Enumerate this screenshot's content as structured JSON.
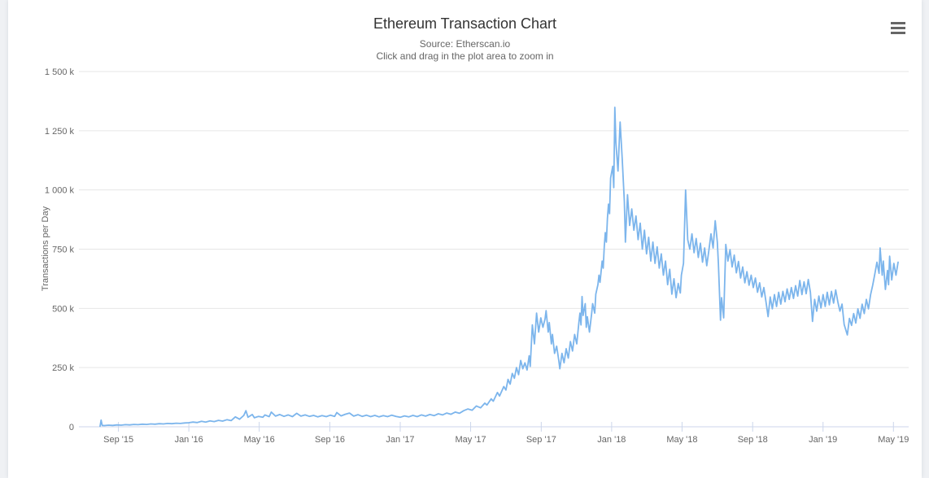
{
  "page": {
    "background": "#eff1f4",
    "card_background": "#ffffff"
  },
  "header": {
    "title": "Ethereum Transaction Chart",
    "subtitle": "Source: Etherscan.io",
    "hint": "Click and drag in the plot area to zoom in"
  },
  "toolbar": {
    "context_menu_icon": "hamburger-icon"
  },
  "chart_data": {
    "type": "line",
    "title": "Ethereum Transaction Chart",
    "subtitle": "Source: Etherscan.io",
    "annotation": "Click and drag in the plot area to zoom in",
    "ylabel": "Transactions per Day",
    "y_unit": "thousands",
    "legend": "none",
    "grid": "horizontal-only",
    "xlim": [
      2015.48,
      2019.405
    ],
    "ylim": [
      0,
      1500
    ],
    "colors": {
      "line": "#7cb5ec",
      "grid": "#e6e6e6",
      "axis_line": "#ccd6eb",
      "labels": "#666666",
      "title": "#333333"
    },
    "x_ticks": [
      {
        "t": 2015.667,
        "label": "Sep '15"
      },
      {
        "t": 2016.0,
        "label": "Jan '16"
      },
      {
        "t": 2016.333,
        "label": "May '16"
      },
      {
        "t": 2016.667,
        "label": "Sep '16"
      },
      {
        "t": 2017.0,
        "label": "Jan '17"
      },
      {
        "t": 2017.333,
        "label": "May '17"
      },
      {
        "t": 2017.667,
        "label": "Sep '17"
      },
      {
        "t": 2018.0,
        "label": "Jan '18"
      },
      {
        "t": 2018.333,
        "label": "May '18"
      },
      {
        "t": 2018.667,
        "label": "Sep '18"
      },
      {
        "t": 2019.0,
        "label": "Jan '19"
      },
      {
        "t": 2019.333,
        "label": "May '19"
      }
    ],
    "y_ticks": [
      {
        "v": 0,
        "label": "0"
      },
      {
        "v": 250,
        "label": "250 k"
      },
      {
        "v": 500,
        "label": "500 k"
      },
      {
        "v": 750,
        "label": "750 k"
      },
      {
        "v": 1000,
        "label": "1 000 k"
      },
      {
        "v": 1250,
        "label": "1 250 k"
      },
      {
        "v": 1500,
        "label": "1 500 k"
      }
    ],
    "points": [
      [
        2015.58,
        2
      ],
      [
        2015.585,
        28
      ],
      [
        2015.59,
        6
      ],
      [
        2015.6,
        5
      ],
      [
        2015.62,
        7
      ],
      [
        2015.64,
        6
      ],
      [
        2015.66,
        8
      ],
      [
        2015.68,
        7
      ],
      [
        2015.7,
        9
      ],
      [
        2015.72,
        8
      ],
      [
        2015.74,
        10
      ],
      [
        2015.76,
        9
      ],
      [
        2015.78,
        11
      ],
      [
        2015.8,
        10
      ],
      [
        2015.82,
        12
      ],
      [
        2015.84,
        11
      ],
      [
        2015.86,
        13
      ],
      [
        2015.88,
        12
      ],
      [
        2015.9,
        14
      ],
      [
        2015.92,
        13
      ],
      [
        2015.94,
        15
      ],
      [
        2015.96,
        14
      ],
      [
        2015.98,
        16
      ],
      [
        2016.0,
        17
      ],
      [
        2016.02,
        20
      ],
      [
        2016.04,
        18
      ],
      [
        2016.06,
        23
      ],
      [
        2016.08,
        20
      ],
      [
        2016.1,
        25
      ],
      [
        2016.12,
        22
      ],
      [
        2016.14,
        27
      ],
      [
        2016.16,
        24
      ],
      [
        2016.18,
        30
      ],
      [
        2016.2,
        26
      ],
      [
        2016.22,
        42
      ],
      [
        2016.24,
        32
      ],
      [
        2016.26,
        48
      ],
      [
        2016.27,
        68
      ],
      [
        2016.28,
        40
      ],
      [
        2016.3,
        52
      ],
      [
        2016.31,
        38
      ],
      [
        2016.33,
        44
      ],
      [
        2016.35,
        40
      ],
      [
        2016.36,
        50
      ],
      [
        2016.38,
        43
      ],
      [
        2016.39,
        62
      ],
      [
        2016.41,
        45
      ],
      [
        2016.43,
        52
      ],
      [
        2016.45,
        44
      ],
      [
        2016.47,
        50
      ],
      [
        2016.49,
        43
      ],
      [
        2016.51,
        57
      ],
      [
        2016.53,
        45
      ],
      [
        2016.55,
        50
      ],
      [
        2016.57,
        44
      ],
      [
        2016.59,
        48
      ],
      [
        2016.61,
        42
      ],
      [
        2016.63,
        47
      ],
      [
        2016.65,
        43
      ],
      [
        2016.67,
        49
      ],
      [
        2016.69,
        44
      ],
      [
        2016.7,
        60
      ],
      [
        2016.72,
        46
      ],
      [
        2016.74,
        53
      ],
      [
        2016.76,
        58
      ],
      [
        2016.78,
        45
      ],
      [
        2016.8,
        51
      ],
      [
        2016.82,
        44
      ],
      [
        2016.84,
        49
      ],
      [
        2016.86,
        43
      ],
      [
        2016.88,
        48
      ],
      [
        2016.9,
        42
      ],
      [
        2016.92,
        47
      ],
      [
        2016.94,
        43
      ],
      [
        2016.96,
        49
      ],
      [
        2016.98,
        44
      ],
      [
        2017.0,
        40
      ],
      [
        2017.02,
        46
      ],
      [
        2017.04,
        42
      ],
      [
        2017.06,
        48
      ],
      [
        2017.08,
        43
      ],
      [
        2017.1,
        50
      ],
      [
        2017.12,
        45
      ],
      [
        2017.14,
        52
      ],
      [
        2017.16,
        47
      ],
      [
        2017.18,
        55
      ],
      [
        2017.2,
        50
      ],
      [
        2017.22,
        58
      ],
      [
        2017.24,
        53
      ],
      [
        2017.26,
        62
      ],
      [
        2017.28,
        57
      ],
      [
        2017.3,
        68
      ],
      [
        2017.32,
        75
      ],
      [
        2017.34,
        70
      ],
      [
        2017.36,
        88
      ],
      [
        2017.38,
        80
      ],
      [
        2017.4,
        100
      ],
      [
        2017.41,
        92
      ],
      [
        2017.43,
        118
      ],
      [
        2017.44,
        108
      ],
      [
        2017.46,
        145
      ],
      [
        2017.47,
        130
      ],
      [
        2017.49,
        170
      ],
      [
        2017.5,
        155
      ],
      [
        2017.51,
        200
      ],
      [
        2017.52,
        180
      ],
      [
        2017.53,
        225
      ],
      [
        2017.54,
        205
      ],
      [
        2017.55,
        250
      ],
      [
        2017.56,
        220
      ],
      [
        2017.57,
        280
      ],
      [
        2017.58,
        245
      ],
      [
        2017.59,
        270
      ],
      [
        2017.6,
        240
      ],
      [
        2017.61,
        300
      ],
      [
        2017.615,
        255
      ],
      [
        2017.625,
        430
      ],
      [
        2017.635,
        350
      ],
      [
        2017.645,
        480
      ],
      [
        2017.655,
        400
      ],
      [
        2017.665,
        460
      ],
      [
        2017.675,
        420
      ],
      [
        2017.685,
        455
      ],
      [
        2017.69,
        490
      ],
      [
        2017.7,
        400
      ],
      [
        2017.705,
        440
      ],
      [
        2017.715,
        350
      ],
      [
        2017.72,
        390
      ],
      [
        2017.73,
        310
      ],
      [
        2017.74,
        340
      ],
      [
        2017.75,
        280
      ],
      [
        2017.755,
        245
      ],
      [
        2017.765,
        310
      ],
      [
        2017.775,
        270
      ],
      [
        2017.785,
        330
      ],
      [
        2017.795,
        290
      ],
      [
        2017.805,
        360
      ],
      [
        2017.815,
        320
      ],
      [
        2017.825,
        390
      ],
      [
        2017.835,
        350
      ],
      [
        2017.845,
        440
      ],
      [
        2017.85,
        480
      ],
      [
        2017.855,
        430
      ],
      [
        2017.86,
        550
      ],
      [
        2017.865,
        470
      ],
      [
        2017.875,
        520
      ],
      [
        2017.88,
        420
      ],
      [
        2017.885,
        465
      ],
      [
        2017.895,
        400
      ],
      [
        2017.905,
        475
      ],
      [
        2017.91,
        520
      ],
      [
        2017.92,
        480
      ],
      [
        2017.925,
        560
      ],
      [
        2017.935,
        600
      ],
      [
        2017.94,
        640
      ],
      [
        2017.945,
        610
      ],
      [
        2017.955,
        700
      ],
      [
        2017.96,
        670
      ],
      [
        2017.965,
        760
      ],
      [
        2017.97,
        820
      ],
      [
        2017.975,
        780
      ],
      [
        2017.98,
        880
      ],
      [
        2017.985,
        940
      ],
      [
        2017.99,
        900
      ],
      [
        2017.995,
        1050
      ],
      [
        2018.005,
        1100
      ],
      [
        2018.01,
        1010
      ],
      [
        2018.015,
        1349
      ],
      [
        2018.02,
        1200
      ],
      [
        2018.03,
        1080
      ],
      [
        2018.04,
        1287
      ],
      [
        2018.05,
        1130
      ],
      [
        2018.06,
        950
      ],
      [
        2018.065,
        780
      ],
      [
        2018.075,
        980
      ],
      [
        2018.085,
        850
      ],
      [
        2018.095,
        920
      ],
      [
        2018.105,
        830
      ],
      [
        2018.115,
        890
      ],
      [
        2018.125,
        790
      ],
      [
        2018.135,
        860
      ],
      [
        2018.145,
        750
      ],
      [
        2018.155,
        830
      ],
      [
        2018.165,
        730
      ],
      [
        2018.175,
        800
      ],
      [
        2018.185,
        700
      ],
      [
        2018.195,
        780
      ],
      [
        2018.205,
        690
      ],
      [
        2018.215,
        760
      ],
      [
        2018.225,
        670
      ],
      [
        2018.235,
        730
      ],
      [
        2018.245,
        640
      ],
      [
        2018.255,
        700
      ],
      [
        2018.265,
        600
      ],
      [
        2018.275,
        665
      ],
      [
        2018.285,
        560
      ],
      [
        2018.295,
        625
      ],
      [
        2018.305,
        545
      ],
      [
        2018.315,
        605
      ],
      [
        2018.325,
        565
      ],
      [
        2018.33,
        640
      ],
      [
        2018.34,
        690
      ],
      [
        2018.35,
        1000
      ],
      [
        2018.36,
        790
      ],
      [
        2018.37,
        750
      ],
      [
        2018.38,
        815
      ],
      [
        2018.39,
        735
      ],
      [
        2018.4,
        795
      ],
      [
        2018.41,
        715
      ],
      [
        2018.42,
        775
      ],
      [
        2018.43,
        695
      ],
      [
        2018.44,
        755
      ],
      [
        2018.45,
        680
      ],
      [
        2018.46,
        745
      ],
      [
        2018.47,
        815
      ],
      [
        2018.48,
        755
      ],
      [
        2018.49,
        870
      ],
      [
        2018.5,
        780
      ],
      [
        2018.505,
        690
      ],
      [
        2018.515,
        450
      ],
      [
        2018.52,
        545
      ],
      [
        2018.53,
        460
      ],
      [
        2018.54,
        770
      ],
      [
        2018.55,
        700
      ],
      [
        2018.56,
        748
      ],
      [
        2018.57,
        675
      ],
      [
        2018.58,
        725
      ],
      [
        2018.59,
        650
      ],
      [
        2018.6,
        698
      ],
      [
        2018.61,
        628
      ],
      [
        2018.62,
        675
      ],
      [
        2018.63,
        608
      ],
      [
        2018.64,
        655
      ],
      [
        2018.65,
        598
      ],
      [
        2018.66,
        640
      ],
      [
        2018.67,
        588
      ],
      [
        2018.68,
        628
      ],
      [
        2018.69,
        568
      ],
      [
        2018.7,
        608
      ],
      [
        2018.71,
        548
      ],
      [
        2018.72,
        588
      ],
      [
        2018.73,
        528
      ],
      [
        2018.74,
        465
      ],
      [
        2018.75,
        548
      ],
      [
        2018.76,
        498
      ],
      [
        2018.77,
        558
      ],
      [
        2018.78,
        508
      ],
      [
        2018.79,
        568
      ],
      [
        2018.8,
        518
      ],
      [
        2018.81,
        572
      ],
      [
        2018.82,
        528
      ],
      [
        2018.83,
        582
      ],
      [
        2018.84,
        538
      ],
      [
        2018.85,
        588
      ],
      [
        2018.86,
        542
      ],
      [
        2018.87,
        596
      ],
      [
        2018.88,
        552
      ],
      [
        2018.89,
        618
      ],
      [
        2018.9,
        558
      ],
      [
        2018.91,
        612
      ],
      [
        2018.92,
        562
      ],
      [
        2018.93,
        622
      ],
      [
        2018.94,
        568
      ],
      [
        2018.95,
        445
      ],
      [
        2018.96,
        538
      ],
      [
        2018.97,
        488
      ],
      [
        2018.98,
        552
      ],
      [
        2018.99,
        502
      ],
      [
        2019.0,
        558
      ],
      [
        2019.01,
        508
      ],
      [
        2019.02,
        568
      ],
      [
        2019.03,
        515
      ],
      [
        2019.04,
        572
      ],
      [
        2019.05,
        522
      ],
      [
        2019.06,
        578
      ],
      [
        2019.07,
        528
      ],
      [
        2019.08,
        488
      ],
      [
        2019.09,
        518
      ],
      [
        2019.1,
        432
      ],
      [
        2019.115,
        388
      ],
      [
        2019.125,
        458
      ],
      [
        2019.135,
        428
      ],
      [
        2019.145,
        478
      ],
      [
        2019.155,
        438
      ],
      [
        2019.165,
        498
      ],
      [
        2019.175,
        458
      ],
      [
        2019.185,
        518
      ],
      [
        2019.195,
        478
      ],
      [
        2019.205,
        538
      ],
      [
        2019.215,
        498
      ],
      [
        2019.225,
        558
      ],
      [
        2019.235,
        598
      ],
      [
        2019.245,
        645
      ],
      [
        2019.255,
        695
      ],
      [
        2019.265,
        648
      ],
      [
        2019.27,
        755
      ],
      [
        2019.28,
        640
      ],
      [
        2019.285,
        700
      ],
      [
        2019.295,
        580
      ],
      [
        2019.305,
        660
      ],
      [
        2019.31,
        600
      ],
      [
        2019.315,
        720
      ],
      [
        2019.325,
        620
      ],
      [
        2019.335,
        690
      ],
      [
        2019.345,
        640
      ],
      [
        2019.355,
        695
      ]
    ]
  }
}
